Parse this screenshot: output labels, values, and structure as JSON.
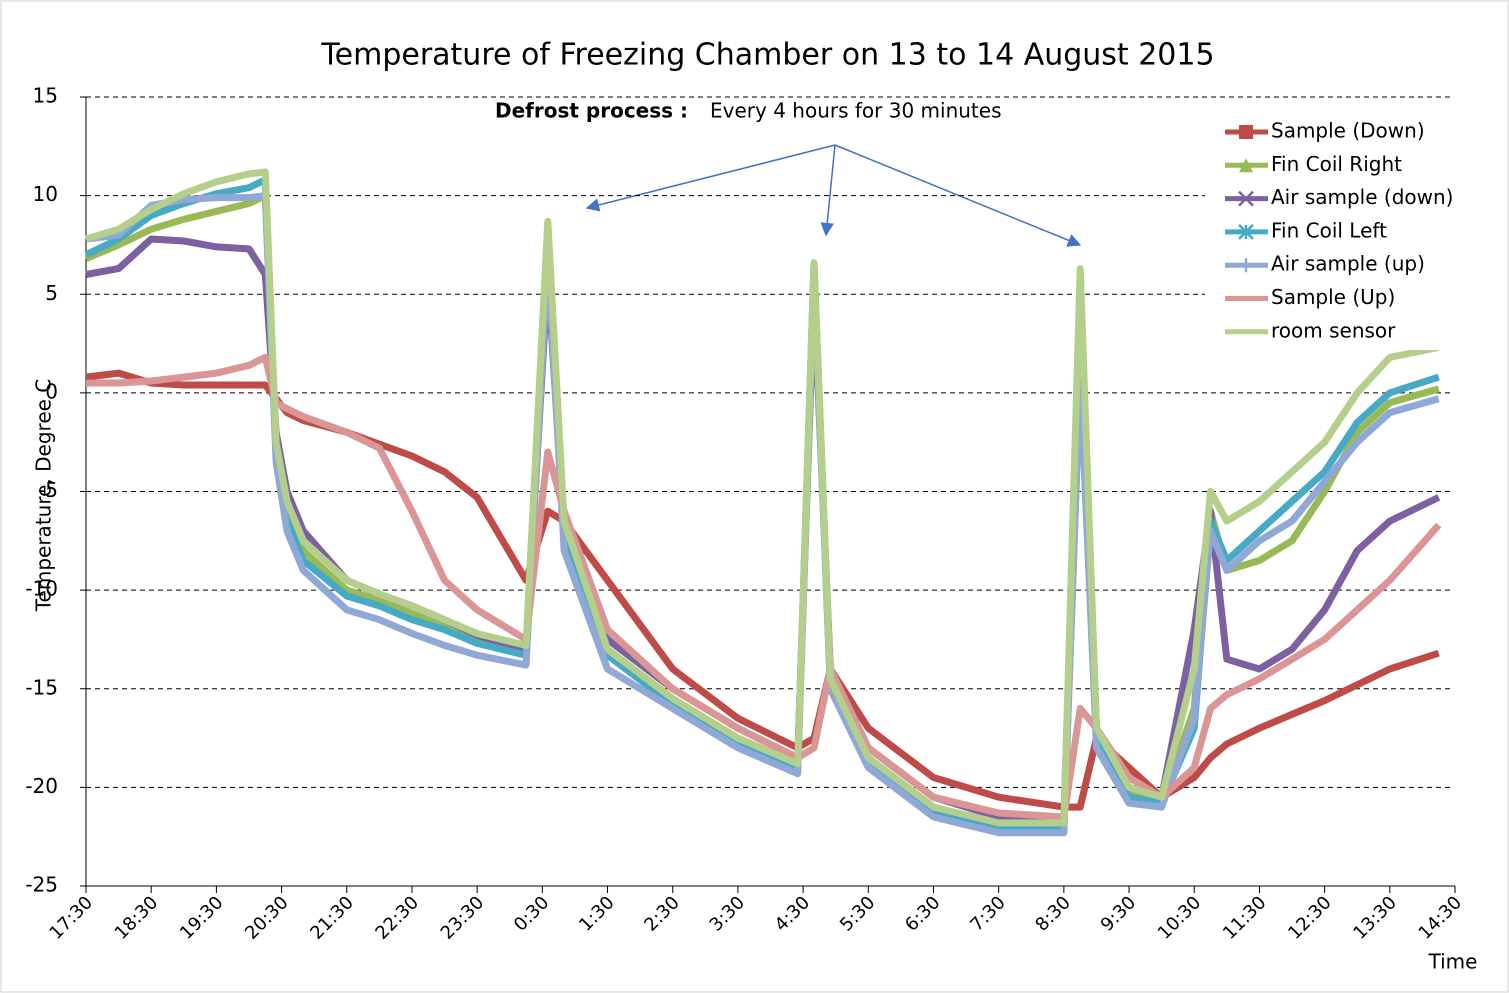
{
  "chart_data": {
    "type": "line",
    "title": "Temperature of  Freezing Chamber on 13 to 14 August 2015",
    "annotation_bold": "Defrost  process :",
    "annotation": "Every  4  hours  for 30 minutes",
    "ylabel": "Temperature,  Degree C",
    "xlabel": "Time",
    "x": [
      "17:30",
      "18:00",
      "18:30",
      "19:00",
      "19:30",
      "20:00",
      "20:15",
      "20:25",
      "20:35",
      "20:50",
      "21:30",
      "22:00",
      "22:30",
      "23:00",
      "23:30",
      "0:15",
      "0:35",
      "0:50",
      "1:30",
      "2:30",
      "3:30",
      "4:25",
      "4:40",
      "4:55",
      "5:30",
      "6:30",
      "7:30",
      "8:30",
      "8:45",
      "9:00",
      "9:30",
      "10:00",
      "10:30",
      "10:45",
      "11:00",
      "11:30",
      "12:00",
      "12:30",
      "13:00",
      "13:30",
      "14:15"
    ],
    "xlim": [
      "17:30",
      "14:30"
    ],
    "xticks": [
      "17:30",
      "18:30",
      "19:30",
      "20:30",
      "21:30",
      "22:30",
      "23:30",
      "0:30",
      "1:30",
      "2:30",
      "3:30",
      "4:30",
      "5:30",
      "6:30",
      "7:30",
      "8:30",
      "9:30",
      "10:30",
      "11:30",
      "12:30",
      "13:30",
      "14:30"
    ],
    "ylim": [
      -25,
      15
    ],
    "yticks": [
      -25,
      -20,
      -15,
      -10,
      -5,
      0,
      5,
      10,
      15
    ],
    "grid": true,
    "legend": "upper right",
    "series": [
      {
        "name": "Sample (Down)",
        "color": "#be4b48",
        "marker": "square",
        "values": [
          0.8,
          1,
          0.5,
          0.4,
          0.4,
          0.4,
          0.4,
          -0.3,
          -1,
          -1.4,
          -2,
          -2.6,
          -3.2,
          -4,
          -5.3,
          -9.5,
          -6,
          -6.5,
          -9.5,
          -14,
          -16.5,
          -18,
          -17.5,
          -14,
          -17,
          -19.5,
          -20.5,
          -21,
          -21,
          -17.5,
          -19,
          -20.5,
          -19.5,
          -18.5,
          -17.8,
          -17,
          -16.3,
          -15.6,
          -14.8,
          -14,
          -13.2
        ]
      },
      {
        "name": "Fin Coil Right",
        "color": "#98b954",
        "marker": "triangle",
        "values": [
          6.8,
          7.5,
          8.3,
          8.8,
          9.2,
          9.6,
          10,
          -3,
          -6,
          -8,
          -10,
          -10.5,
          -11.2,
          -11.8,
          -12.4,
          -13,
          8.5,
          -7,
          -13,
          -15.5,
          -17.5,
          -18.8,
          6.5,
          -14.5,
          -18.5,
          -21,
          -22,
          -22,
          1,
          -17.5,
          -20.3,
          -20.8,
          -16,
          -6,
          -9,
          -8.5,
          -7.5,
          -5,
          -2,
          -0.5,
          0.2
        ]
      },
      {
        "name": "Air sample (down)",
        "color": "#7d60a0",
        "marker": "x",
        "values": [
          6,
          6.3,
          7.8,
          7.7,
          7.4,
          7.3,
          6,
          -2,
          -5,
          -7,
          -9.5,
          -10.2,
          -10.8,
          -11.5,
          -12.3,
          -13,
          6,
          -7,
          -12.5,
          -15,
          -17,
          -18.5,
          5,
          -14,
          -18,
          -20.5,
          -21.5,
          -21.5,
          3,
          -17,
          -20,
          -20.5,
          -12,
          -6,
          -13.5,
          -14,
          -13,
          -11,
          -8,
          -6.5,
          -5.3
        ]
      },
      {
        "name": "Fin Coil  Left",
        "color": "#46aac5",
        "marker": "star",
        "values": [
          7,
          7.8,
          9,
          9.6,
          10.1,
          10.4,
          10.8,
          -3,
          -6.5,
          -8.5,
          -10.3,
          -10.8,
          -11.5,
          -12,
          -12.7,
          -13.3,
          8,
          -7.5,
          -13.3,
          -15.8,
          -17.8,
          -19,
          6.5,
          -14.8,
          -18.8,
          -21.2,
          -22,
          -22,
          2,
          -17.5,
          -20.5,
          -20.8,
          -17,
          -6.5,
          -8.5,
          -7,
          -5.5,
          -4,
          -1.5,
          0,
          0.8
        ]
      },
      {
        "name": "Air sample (up)",
        "color": "#8fa8d6",
        "marker": "plus",
        "values": [
          7.8,
          8,
          9.5,
          9.8,
          9.9,
          9.9,
          10,
          -3.5,
          -7,
          -9,
          -11,
          -11.5,
          -12.2,
          -12.8,
          -13.3,
          -13.8,
          7,
          -8,
          -14,
          -16,
          -18,
          -19.3,
          6,
          -15,
          -19,
          -21.5,
          -22.3,
          -22.3,
          1,
          -18,
          -20.8,
          -21,
          -16.5,
          -7,
          -9,
          -7.5,
          -6.5,
          -4.5,
          -2.5,
          -1,
          -0.3
        ]
      },
      {
        "name": "Sample (Up)",
        "color": "#d99694",
        "marker": "none",
        "values": [
          0.5,
          0.5,
          0.6,
          0.8,
          1,
          1.4,
          1.8,
          -0.5,
          -0.8,
          -1.2,
          -2,
          -2.8,
          -6,
          -9.5,
          -11,
          -12.5,
          -3,
          -6,
          -12,
          -15,
          -17,
          -18.5,
          -18,
          -14,
          -18,
          -20.5,
          -21.3,
          -21.5,
          -16,
          -17,
          -19.5,
          -20.5,
          -19,
          -16,
          -15.3,
          -14.5,
          -13.5,
          -12.5,
          -11,
          -9.5,
          -6.7
        ]
      },
      {
        "name": "room sensor",
        "color": "#b3cf8b",
        "marker": "none",
        "values": [
          7.8,
          8.3,
          9.3,
          10.1,
          10.7,
          11.1,
          11.2,
          -2.5,
          -5.5,
          -7.5,
          -9.5,
          -10.2,
          -10.8,
          -11.5,
          -12.2,
          -12.8,
          8.7,
          -6.5,
          -13,
          -15.5,
          -17.5,
          -18.8,
          6.6,
          -14.5,
          -18.5,
          -21,
          -21.8,
          -21.8,
          6.3,
          -17,
          -20,
          -20.5,
          -14,
          -5,
          -6.5,
          -5.5,
          -4,
          -2.5,
          0,
          1.8,
          2.3
        ]
      }
    ]
  }
}
